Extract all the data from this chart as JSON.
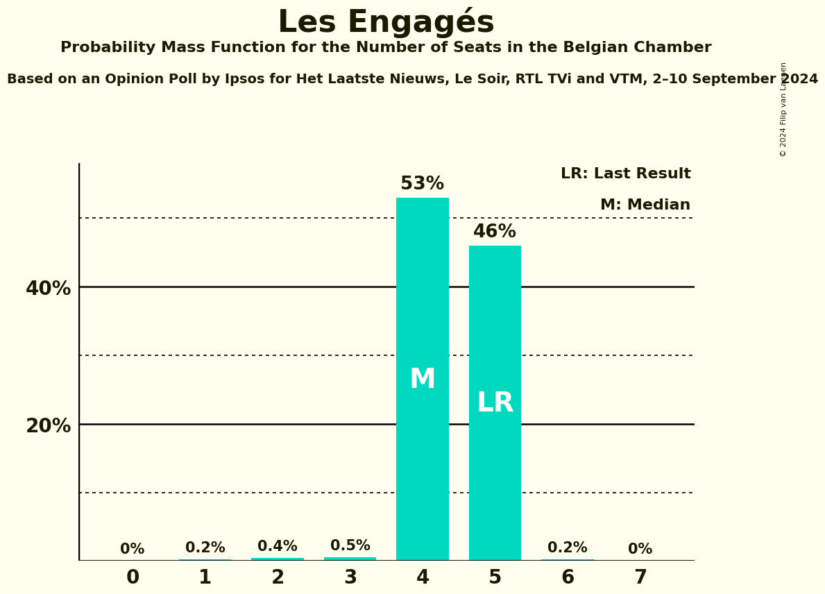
{
  "title": "Les Engagés",
  "subtitle1": "Probability Mass Function for the Number of Seats in the Belgian Chamber",
  "subtitle2": "Based on an Opinion Poll by Ipsos for Het Laatste Nieuws, Le Soir, RTL TVi and VTM, 2–10 September 2024",
  "copyright": "© 2024 Filip van Laenen",
  "categories": [
    0,
    1,
    2,
    3,
    4,
    5,
    6,
    7
  ],
  "values": [
    0.0,
    0.2,
    0.4,
    0.5,
    53.0,
    46.0,
    0.2,
    0.0
  ],
  "bar_color": "#00D9C0",
  "median_seat": 4,
  "last_result_seat": 5,
  "label_M": "M",
  "label_LR": "LR",
  "background_color": "#FFFFF0",
  "text_color": "#1a1a00",
  "axis_solid_ticks": [
    20,
    40
  ],
  "axis_dotted_ticks": [
    10,
    30,
    50
  ],
  "ylim": [
    0,
    58
  ],
  "legend_LR": "LR: Last Result",
  "legend_M": "M: Median",
  "bar_width": 0.72
}
